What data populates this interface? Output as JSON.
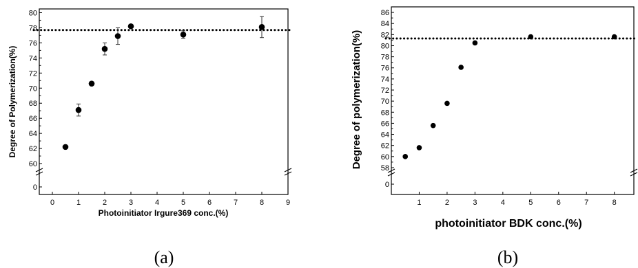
{
  "panels": [
    {
      "caption": "(a)",
      "chart_data": {
        "type": "scatter",
        "title": "",
        "xlabel": "Photoinitiator Irgure369 conc.(%)",
        "ylabel": "Degree of Polymerization(%)",
        "xlim": [
          -0.5,
          9
        ],
        "ylim_upper": [
          59,
          80.5
        ],
        "axis_break": true,
        "x_ticks": [
          "0",
          "1",
          "2",
          "3",
          "4",
          "5",
          "6",
          "7",
          "8",
          "9"
        ],
        "y_ticks_upper": [
          "60",
          "62",
          "64",
          "66",
          "68",
          "70",
          "72",
          "74",
          "76",
          "78",
          "80"
        ],
        "y_ticks_lower": [
          "0"
        ],
        "reference_line_y": 77.7,
        "series": [
          {
            "x": [
              0.5,
              1.0,
              1.5,
              2.0,
              2.5,
              3.0,
              5.0,
              8.0
            ],
            "y": [
              62.2,
              67.1,
              70.6,
              75.2,
              76.9,
              78.2,
              77.1,
              78.1
            ],
            "error": [
              0,
              0.8,
              0,
              0.8,
              1.1,
              0,
              0.5,
              1.4
            ]
          }
        ],
        "grid": false,
        "legend": "none"
      }
    },
    {
      "caption": "(b)",
      "chart_data": {
        "type": "scatter",
        "title": "",
        "xlabel": "photoinitiator BDK conc.(%)",
        "ylabel": "Degree of polymerization(%)",
        "xlim": [
          0,
          8.7
        ],
        "ylim_upper": [
          57.5,
          87
        ],
        "axis_break": true,
        "x_ticks": [
          "1",
          "2",
          "3",
          "4",
          "5",
          "6",
          "7",
          "8"
        ],
        "y_ticks_upper": [
          "58",
          "60",
          "62",
          "64",
          "66",
          "68",
          "70",
          "72",
          "74",
          "76",
          "78",
          "80",
          "82",
          "84",
          "86"
        ],
        "y_ticks_lower": [
          "0"
        ],
        "reference_line_y": 81.3,
        "series": [
          {
            "x": [
              0.5,
              1.0,
              1.5,
              2.0,
              2.5,
              3.0,
              5.0,
              8.0
            ],
            "y": [
              60.0,
              61.6,
              65.6,
              69.6,
              76.1,
              80.5,
              81.6,
              81.6
            ]
          }
        ],
        "grid": false,
        "legend": "none"
      }
    }
  ]
}
